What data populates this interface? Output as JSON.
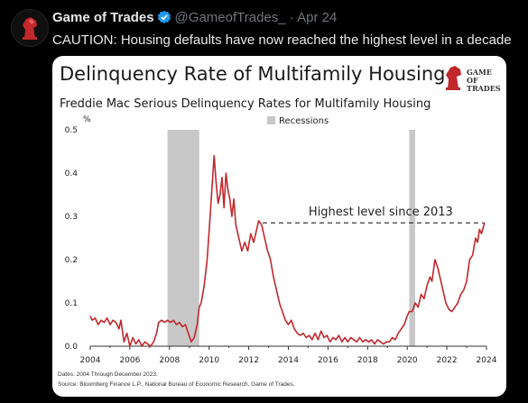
{
  "tweet": {
    "author_name": "Game of Trades",
    "handle": "@GameofTrades_",
    "separator": "·",
    "date": "Apr 24",
    "text": "CAUTION: Housing defaults have now reached the highest level in a decade"
  },
  "card": {
    "title": "Delinquency Rate of Multifamily Housing",
    "subtitle": "Freddie Mac Serious Delinquency Rates for Multifamily Housing",
    "logo_line1": "GAME OF",
    "logo_line2": "TRADES",
    "footer_dates": "Dates: 2004 Through December 2023.",
    "footer_source": "Source: Bloomberg Finance L.P., National Bureau of Economic Research, Game of Trades."
  },
  "chart_data": {
    "type": "line",
    "title": "Freddie Mac Serious Delinquency Rates for Multifamily Housing",
    "ylabel": "%",
    "xlabel": "",
    "xlim": [
      2004,
      2024
    ],
    "ylim": [
      0,
      0.5
    ],
    "xticks": [
      "2004",
      "2006",
      "2008",
      "2010",
      "2012",
      "2014",
      "2016",
      "2018",
      "2020",
      "2022",
      "2024"
    ],
    "yticks": [
      "0.0",
      "0.1",
      "0.2",
      "0.3",
      "0.4",
      "0.5"
    ],
    "line_color": "#c0282c",
    "recession_color": "#c8c8c8",
    "legend": {
      "label": "Recessions",
      "position": "top"
    },
    "recessions": [
      [
        2007.9,
        2009.5
      ],
      [
        2020.1,
        2020.4
      ]
    ],
    "annotation": {
      "text": "Highest level since 2013",
      "level": 0.285,
      "from": 2012.7,
      "to": 2023.9
    },
    "series": [
      {
        "points": [
          [
            2004.0,
            0.07
          ],
          [
            2004.1,
            0.06
          ],
          [
            2004.25,
            0.065
          ],
          [
            2004.4,
            0.05
          ],
          [
            2004.55,
            0.06
          ],
          [
            2004.7,
            0.055
          ],
          [
            2004.85,
            0.065
          ],
          [
            2005.0,
            0.05
          ],
          [
            2005.15,
            0.06
          ],
          [
            2005.3,
            0.055
          ],
          [
            2005.45,
            0.04
          ],
          [
            2005.55,
            0.06
          ],
          [
            2005.7,
            0.01
          ],
          [
            2005.85,
            0.03
          ],
          [
            2006.0,
            0.0
          ],
          [
            2006.15,
            0.02
          ],
          [
            2006.3,
            0.005
          ],
          [
            2006.45,
            0.015
          ],
          [
            2006.6,
            0.0
          ],
          [
            2006.75,
            0.01
          ],
          [
            2006.9,
            0.005
          ],
          [
            2007.05,
            0.0
          ],
          [
            2007.2,
            0.01
          ],
          [
            2007.35,
            0.03
          ],
          [
            2007.45,
            0.055
          ],
          [
            2007.6,
            0.06
          ],
          [
            2007.75,
            0.055
          ],
          [
            2007.9,
            0.06
          ],
          [
            2008.05,
            0.055
          ],
          [
            2008.2,
            0.06
          ],
          [
            2008.35,
            0.05
          ],
          [
            2008.5,
            0.055
          ],
          [
            2008.65,
            0.045
          ],
          [
            2008.8,
            0.05
          ],
          [
            2008.95,
            0.03
          ],
          [
            2009.1,
            0.01
          ],
          [
            2009.25,
            0.02
          ],
          [
            2009.4,
            0.05
          ],
          [
            2009.5,
            0.09
          ],
          [
            2009.6,
            0.1
          ],
          [
            2009.75,
            0.14
          ],
          [
            2009.9,
            0.2
          ],
          [
            2010.05,
            0.3
          ],
          [
            2010.15,
            0.37
          ],
          [
            2010.25,
            0.44
          ],
          [
            2010.35,
            0.38
          ],
          [
            2010.45,
            0.33
          ],
          [
            2010.55,
            0.35
          ],
          [
            2010.65,
            0.39
          ],
          [
            2010.75,
            0.32
          ],
          [
            2010.85,
            0.4
          ],
          [
            2010.95,
            0.36
          ],
          [
            2011.05,
            0.34
          ],
          [
            2011.15,
            0.3
          ],
          [
            2011.25,
            0.34
          ],
          [
            2011.35,
            0.28
          ],
          [
            2011.5,
            0.25
          ],
          [
            2011.65,
            0.22
          ],
          [
            2011.8,
            0.24
          ],
          [
            2011.95,
            0.22
          ],
          [
            2012.1,
            0.26
          ],
          [
            2012.25,
            0.24
          ],
          [
            2012.4,
            0.27
          ],
          [
            2012.5,
            0.29
          ],
          [
            2012.65,
            0.28
          ],
          [
            2012.8,
            0.25
          ],
          [
            2012.95,
            0.22
          ],
          [
            2013.1,
            0.2
          ],
          [
            2013.25,
            0.16
          ],
          [
            2013.4,
            0.13
          ],
          [
            2013.55,
            0.1
          ],
          [
            2013.7,
            0.08
          ],
          [
            2013.85,
            0.06
          ],
          [
            2014.0,
            0.05
          ],
          [
            2014.15,
            0.06
          ],
          [
            2014.3,
            0.04
          ],
          [
            2014.45,
            0.03
          ],
          [
            2014.6,
            0.025
          ],
          [
            2014.75,
            0.03
          ],
          [
            2014.9,
            0.02
          ],
          [
            2015.05,
            0.025
          ],
          [
            2015.2,
            0.015
          ],
          [
            2015.35,
            0.03
          ],
          [
            2015.5,
            0.015
          ],
          [
            2015.65,
            0.035
          ],
          [
            2015.8,
            0.02
          ],
          [
            2015.95,
            0.025
          ],
          [
            2016.1,
            0.01
          ],
          [
            2016.25,
            0.02
          ],
          [
            2016.4,
            0.015
          ],
          [
            2016.55,
            0.025
          ],
          [
            2016.7,
            0.01
          ],
          [
            2016.85,
            0.02
          ],
          [
            2017.0,
            0.01
          ],
          [
            2017.15,
            0.02
          ],
          [
            2017.3,
            0.015
          ],
          [
            2017.45,
            0.01
          ],
          [
            2017.6,
            0.02
          ],
          [
            2017.75,
            0.01
          ],
          [
            2017.9,
            0.015
          ],
          [
            2018.05,
            0.01
          ],
          [
            2018.2,
            0.015
          ],
          [
            2018.35,
            0.005
          ],
          [
            2018.5,
            0.015
          ],
          [
            2018.65,
            0.01
          ],
          [
            2018.8,
            0.005
          ],
          [
            2018.95,
            0.01
          ],
          [
            2019.1,
            0.01
          ],
          [
            2019.25,
            0.02
          ],
          [
            2019.4,
            0.015
          ],
          [
            2019.55,
            0.03
          ],
          [
            2019.7,
            0.04
          ],
          [
            2019.85,
            0.05
          ],
          [
            2020.0,
            0.07
          ],
          [
            2020.1,
            0.08
          ],
          [
            2020.25,
            0.08
          ],
          [
            2020.4,
            0.1
          ],
          [
            2020.55,
            0.09
          ],
          [
            2020.7,
            0.12
          ],
          [
            2020.85,
            0.11
          ],
          [
            2021.0,
            0.14
          ],
          [
            2021.15,
            0.16
          ],
          [
            2021.25,
            0.15
          ],
          [
            2021.4,
            0.2
          ],
          [
            2021.55,
            0.18
          ],
          [
            2021.65,
            0.16
          ],
          [
            2021.8,
            0.13
          ],
          [
            2021.95,
            0.1
          ],
          [
            2022.1,
            0.085
          ],
          [
            2022.25,
            0.08
          ],
          [
            2022.4,
            0.09
          ],
          [
            2022.55,
            0.1
          ],
          [
            2022.7,
            0.12
          ],
          [
            2022.85,
            0.13
          ],
          [
            2023.0,
            0.15
          ],
          [
            2023.15,
            0.2
          ],
          [
            2023.3,
            0.21
          ],
          [
            2023.45,
            0.25
          ],
          [
            2023.55,
            0.24
          ],
          [
            2023.65,
            0.27
          ],
          [
            2023.75,
            0.26
          ],
          [
            2023.9,
            0.285
          ]
        ]
      }
    ]
  }
}
